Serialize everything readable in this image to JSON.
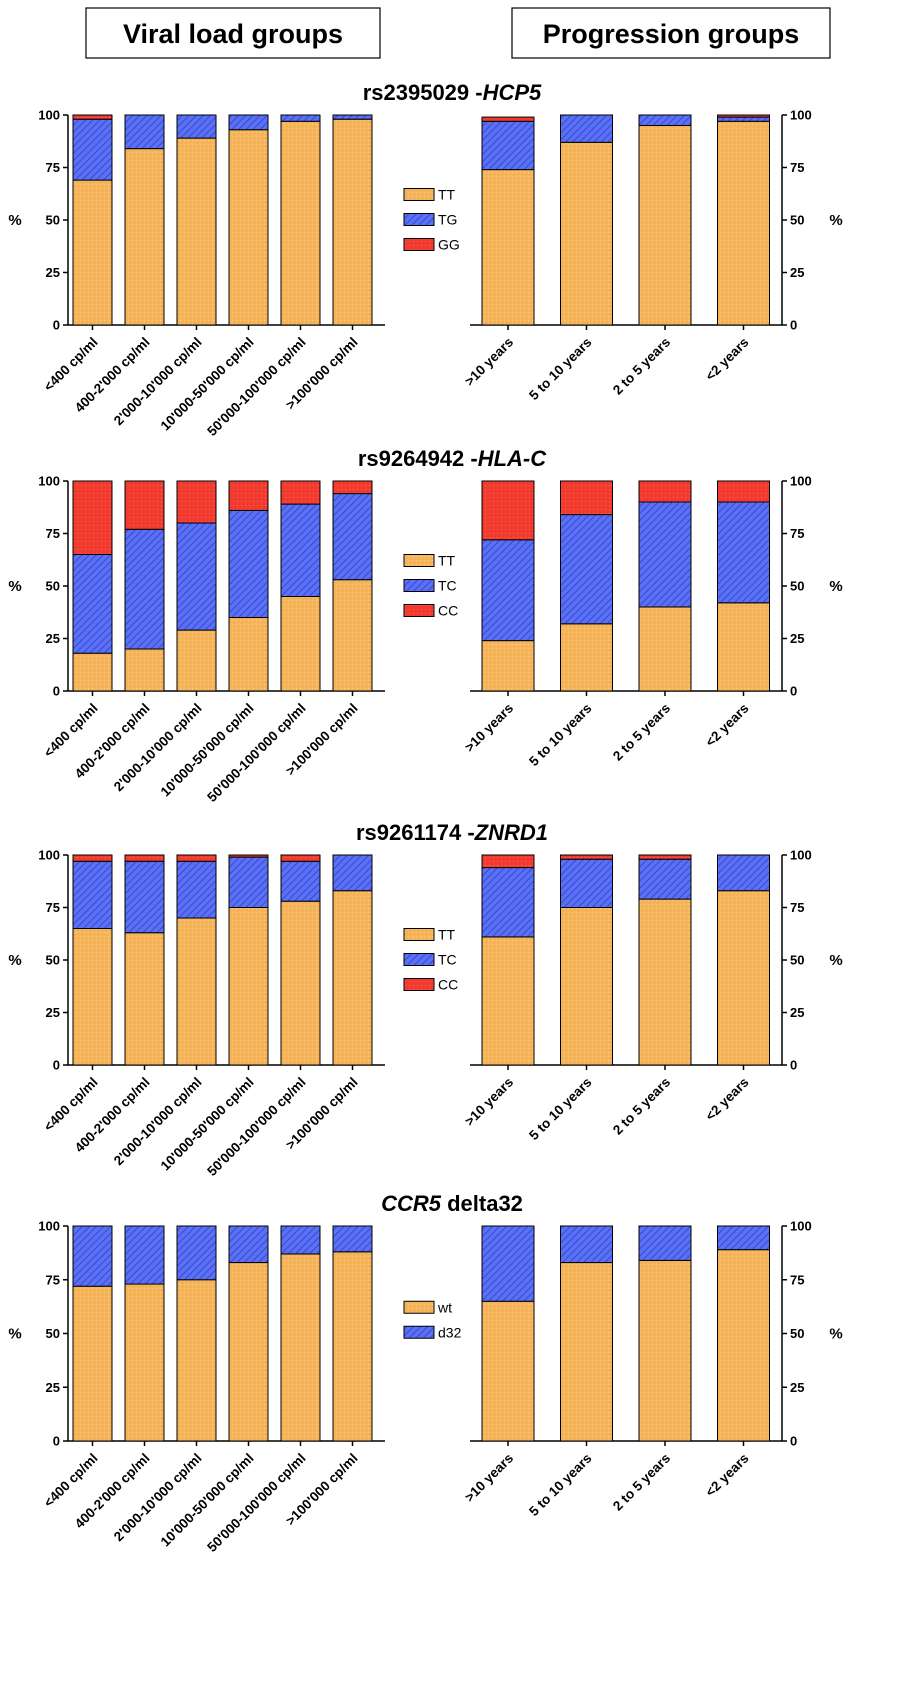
{
  "headers": {
    "left": "Viral load groups",
    "right": "Progression groups"
  },
  "colors": {
    "orange": "#F6B55B",
    "blue": "#4E63F2",
    "red": "#F33A2E",
    "outline": "#000000"
  },
  "chart_data": [
    {
      "type": "bar",
      "stacked": true,
      "title": "rs2395029",
      "title_gene": "HCP5",
      "ylabel": "%",
      "ylim": [
        0,
        100
      ],
      "yticks": [
        0,
        25,
        50,
        75,
        100
      ],
      "legend": [
        "TT",
        "TG",
        "GG"
      ],
      "viral_load": {
        "categories": [
          "<400 cp/ml",
          "400-2'000 cp/ml",
          "2'000-10'000 cp/ml",
          "10'000-50'000 cp/ml",
          "50'000-100'000 cp/ml",
          ">100'000 cp/ml"
        ],
        "series": [
          {
            "name": "TT",
            "values": [
              69,
              84,
              89,
              93,
              97,
              98
            ]
          },
          {
            "name": "TG",
            "values": [
              29,
              16,
              11,
              7,
              3,
              2
            ]
          },
          {
            "name": "GG",
            "values": [
              2,
              0,
              0,
              0,
              0,
              0
            ]
          }
        ]
      },
      "progression": {
        "categories": [
          ">10 years",
          "5 to 10 years",
          "2 to 5 years",
          "<2 years"
        ],
        "series": [
          {
            "name": "TT",
            "values": [
              74,
              87,
              95,
              97
            ]
          },
          {
            "name": "TG",
            "values": [
              23,
              13,
              5,
              2
            ]
          },
          {
            "name": "GG",
            "values": [
              2,
              0,
              0,
              1
            ]
          }
        ]
      }
    },
    {
      "type": "bar",
      "stacked": true,
      "title": "rs9264942",
      "title_gene": "HLA-C",
      "ylabel": "%",
      "ylim": [
        0,
        100
      ],
      "yticks": [
        0,
        25,
        50,
        75,
        100
      ],
      "legend": [
        "TT",
        "TC",
        "CC"
      ],
      "viral_load": {
        "categories": [
          "<400 cp/ml",
          "400-2'000 cp/ml",
          "2'000-10'000 cp/ml",
          "10'000-50'000 cp/ml",
          "50'000-100'000 cp/ml",
          ">100'000 cp/ml"
        ],
        "series": [
          {
            "name": "TT",
            "values": [
              18,
              20,
              29,
              35,
              45,
              53
            ]
          },
          {
            "name": "TC",
            "values": [
              47,
              57,
              51,
              51,
              44,
              41
            ]
          },
          {
            "name": "CC",
            "values": [
              35,
              23,
              20,
              14,
              11,
              6
            ]
          }
        ]
      },
      "progression": {
        "categories": [
          ">10 years",
          "5 to 10 years",
          "2 to 5 years",
          "<2 years"
        ],
        "series": [
          {
            "name": "TT",
            "values": [
              24,
              32,
              40,
              42
            ]
          },
          {
            "name": "TC",
            "values": [
              48,
              52,
              50,
              48
            ]
          },
          {
            "name": "CC",
            "values": [
              28,
              16,
              10,
              10
            ]
          }
        ]
      }
    },
    {
      "type": "bar",
      "stacked": true,
      "title": "rs9261174",
      "title_gene": "ZNRD1",
      "ylabel": "%",
      "ylim": [
        0,
        100
      ],
      "yticks": [
        0,
        25,
        50,
        75,
        100
      ],
      "legend": [
        "TT",
        "TC",
        "CC"
      ],
      "viral_load": {
        "categories": [
          "<400 cp/ml",
          "400-2'000 cp/ml",
          "2'000-10'000 cp/ml",
          "10'000-50'000 cp/ml",
          "50'000-100'000 cp/ml",
          ">100'000 cp/ml"
        ],
        "series": [
          {
            "name": "TT",
            "values": [
              65,
              63,
              70,
              75,
              78,
              83
            ]
          },
          {
            "name": "TC",
            "values": [
              32,
              34,
              27,
              24,
              19,
              17
            ]
          },
          {
            "name": "CC",
            "values": [
              3,
              3,
              3,
              1,
              3,
              0
            ]
          }
        ]
      },
      "progression": {
        "categories": [
          ">10 years",
          "5 to 10 years",
          "2 to 5 years",
          "<2 years"
        ],
        "series": [
          {
            "name": "TT",
            "values": [
              61,
              75,
              79,
              83
            ]
          },
          {
            "name": "TC",
            "values": [
              33,
              23,
              19,
              17
            ]
          },
          {
            "name": "CC",
            "values": [
              6,
              2,
              2,
              0
            ]
          }
        ]
      }
    },
    {
      "type": "bar",
      "stacked": true,
      "title": "CCR5",
      "title_gene_first": true,
      "title_suffix": "delta32",
      "ylabel": "%",
      "ylim": [
        0,
        100
      ],
      "yticks": [
        0,
        25,
        50,
        75,
        100
      ],
      "legend": [
        "wt",
        "d32"
      ],
      "viral_load": {
        "categories": [
          "<400 cp/ml",
          "400-2'000 cp/ml",
          "2'000-10'000 cp/ml",
          "10'000-50'000 cp/ml",
          "50'000-100'000 cp/ml",
          ">100'000 cp/ml"
        ],
        "series": [
          {
            "name": "wt",
            "values": [
              72,
              73,
              75,
              83,
              87,
              88
            ]
          },
          {
            "name": "d32",
            "values": [
              28,
              27,
              25,
              17,
              13,
              12
            ]
          }
        ]
      },
      "progression": {
        "categories": [
          ">10 years",
          "5 to 10 years",
          "2 to 5 years",
          "<2 years"
        ],
        "series": [
          {
            "name": "wt",
            "values": [
              65,
              83,
              84,
              89
            ]
          },
          {
            "name": "d32",
            "values": [
              35,
              17,
              16,
              11
            ]
          }
        ]
      }
    }
  ]
}
